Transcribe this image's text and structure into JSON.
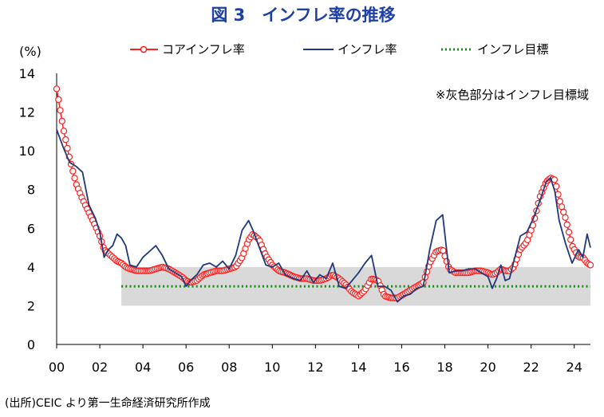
{
  "chart_data": {
    "type": "line",
    "title": "図 3　インフレ率の推移",
    "ylabel": "(%)",
    "xlabel": "",
    "ylim": [
      0,
      14
    ],
    "yticks": [
      0,
      2,
      4,
      6,
      8,
      10,
      12,
      14
    ],
    "xlim": [
      2000,
      2024.75
    ],
    "xtick_values": [
      2000,
      2002,
      2004,
      2006,
      2008,
      2010,
      2012,
      2014,
      2016,
      2018,
      2020,
      2022,
      2024
    ],
    "xtick_labels": [
      "00",
      "02",
      "04",
      "06",
      "08",
      "10",
      "12",
      "14",
      "16",
      "18",
      "20",
      "22",
      "24"
    ],
    "legend": [
      "コアインフレ率",
      "インフレ率",
      "インフレ目標"
    ],
    "legend_position": "top-right",
    "note": "※灰色部分はインフレ目標域",
    "source": "(出所)CEIC より第一生命経済研究所作成",
    "target_band": {
      "from_year": 2003.0,
      "to_year": 2024.75,
      "low": 2,
      "high": 4
    },
    "series": [
      {
        "name": "インフレ率",
        "color": "#1f3a7a",
        "x": [
          2000.0,
          2000.3,
          2000.6,
          2000.9,
          2001.2,
          2001.5,
          2001.8,
          2002.0,
          2002.2,
          2002.4,
          2002.6,
          2002.8,
          2003.0,
          2003.2,
          2003.4,
          2003.7,
          2004.0,
          2004.3,
          2004.6,
          2004.9,
          2005.2,
          2005.5,
          2005.8,
          2006.0,
          2006.2,
          2006.5,
          2006.8,
          2007.1,
          2007.4,
          2007.7,
          2008.0,
          2008.3,
          2008.6,
          2008.9,
          2009.1,
          2009.4,
          2009.7,
          2010.0,
          2010.3,
          2010.6,
          2011.0,
          2011.3,
          2011.6,
          2011.9,
          2012.2,
          2012.5,
          2012.8,
          2013.1,
          2013.4,
          2013.7,
          2014.0,
          2014.3,
          2014.6,
          2014.9,
          2015.2,
          2015.5,
          2015.8,
          2016.1,
          2016.4,
          2016.7,
          2017.0,
          2017.3,
          2017.6,
          2017.9,
          2018.2,
          2018.5,
          2018.8,
          2019.1,
          2019.4,
          2019.7,
          2020.0,
          2020.2,
          2020.4,
          2020.6,
          2020.8,
          2021.0,
          2021.2,
          2021.5,
          2021.8,
          2022.1,
          2022.4,
          2022.7,
          2022.9,
          2023.1,
          2023.3,
          2023.6,
          2023.9,
          2024.2,
          2024.4,
          2024.6,
          2024.75
        ],
        "values": [
          11.1,
          10.2,
          9.4,
          9.2,
          8.9,
          7.2,
          6.5,
          5.8,
          4.5,
          4.9,
          5.1,
          5.7,
          5.5,
          5.1,
          4.1,
          4.0,
          4.5,
          4.8,
          5.1,
          4.6,
          3.9,
          3.7,
          3.5,
          3.0,
          3.3,
          3.6,
          4.1,
          4.2,
          4.0,
          4.3,
          3.9,
          4.6,
          5.9,
          6.4,
          5.9,
          5.0,
          4.1,
          4.0,
          4.2,
          3.6,
          3.4,
          3.3,
          3.8,
          3.2,
          3.6,
          3.4,
          4.2,
          3.0,
          2.9,
          3.3,
          3.7,
          4.2,
          4.6,
          3.0,
          3.0,
          2.8,
          2.2,
          2.5,
          2.6,
          2.9,
          3.0,
          4.9,
          6.4,
          6.7,
          3.7,
          3.8,
          3.8,
          3.9,
          3.9,
          3.7,
          3.5,
          2.9,
          3.4,
          4.1,
          3.3,
          3.4,
          4.3,
          5.6,
          5.8,
          6.5,
          7.4,
          8.4,
          8.6,
          7.9,
          6.4,
          5.2,
          4.2,
          4.9,
          4.5,
          5.7,
          5.0
        ]
      },
      {
        "name": "コアインフレ率",
        "color": "#ff2020",
        "x": [
          2000.0,
          2000.3,
          2000.6,
          2000.9,
          2001.2,
          2001.5,
          2001.8,
          2002.0,
          2002.2,
          2002.4,
          2002.6,
          2002.8,
          2003.0,
          2003.2,
          2003.4,
          2003.7,
          2004.0,
          2004.3,
          2004.6,
          2004.9,
          2005.2,
          2005.5,
          2005.8,
          2006.0,
          2006.2,
          2006.5,
          2006.8,
          2007.1,
          2007.4,
          2007.7,
          2008.0,
          2008.3,
          2008.6,
          2008.9,
          2009.1,
          2009.4,
          2009.7,
          2010.0,
          2010.3,
          2010.6,
          2011.0,
          2011.3,
          2011.6,
          2011.9,
          2012.2,
          2012.5,
          2012.8,
          2013.1,
          2013.4,
          2013.7,
          2014.0,
          2014.3,
          2014.6,
          2014.9,
          2015.2,
          2015.5,
          2015.8,
          2016.1,
          2016.4,
          2016.7,
          2017.0,
          2017.3,
          2017.6,
          2017.9,
          2018.2,
          2018.5,
          2018.8,
          2019.1,
          2019.4,
          2019.7,
          2020.0,
          2020.2,
          2020.4,
          2020.6,
          2020.8,
          2021.0,
          2021.2,
          2021.5,
          2021.8,
          2022.1,
          2022.4,
          2022.7,
          2022.9,
          2023.1,
          2023.3,
          2023.6,
          2023.9,
          2024.2,
          2024.4,
          2024.6,
          2024.75
        ],
        "values": [
          13.2,
          11.2,
          9.6,
          8.3,
          7.5,
          6.8,
          6.1,
          5.6,
          4.9,
          4.7,
          4.5,
          4.3,
          4.2,
          4.0,
          3.9,
          3.8,
          3.8,
          3.8,
          3.9,
          4.0,
          3.9,
          3.7,
          3.5,
          3.3,
          3.2,
          3.3,
          3.6,
          3.7,
          3.8,
          3.8,
          3.9,
          4.0,
          4.5,
          5.4,
          5.7,
          5.4,
          4.6,
          4.1,
          3.8,
          3.7,
          3.5,
          3.4,
          3.4,
          3.3,
          3.3,
          3.4,
          3.6,
          3.4,
          3.1,
          2.7,
          2.5,
          2.8,
          3.4,
          3.3,
          2.5,
          2.4,
          2.4,
          2.6,
          2.8,
          3.0,
          3.2,
          4.2,
          4.8,
          4.9,
          3.9,
          3.7,
          3.7,
          3.7,
          3.8,
          3.8,
          3.7,
          3.6,
          3.7,
          3.9,
          3.8,
          3.8,
          4.0,
          4.9,
          5.3,
          6.2,
          7.6,
          8.4,
          8.6,
          8.5,
          7.5,
          6.5,
          5.1,
          4.5,
          4.5,
          4.2,
          4.1
        ]
      },
      {
        "name": "インフレ目標",
        "color": "#1a8a1a",
        "x": [
          2003.0,
          2024.75
        ],
        "values": [
          3,
          3
        ]
      }
    ]
  }
}
